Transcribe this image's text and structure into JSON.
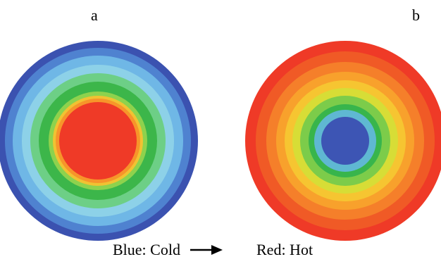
{
  "panels": {
    "a": {
      "label": "a",
      "center_temperature": "hot",
      "edge_temperature": "cold",
      "rings_outer_to_inner": [
        "#3b52b0",
        "#4f82d0",
        "#6fb7e6",
        "#8dd1e8",
        "#6dcf86",
        "#3cb64a",
        "#8ed24d",
        "#f1c232",
        "#f7952a",
        "#ef3a27"
      ]
    },
    "b": {
      "label": "b",
      "center_temperature": "cold",
      "edge_temperature": "hot",
      "rings_outer_to_inner": [
        "#ef3a27",
        "#f05a26",
        "#f57f2a",
        "#f8a12c",
        "#f6c531",
        "#d7dd36",
        "#7ccc4a",
        "#38b54c",
        "#5fb8d2",
        "#3d55b4"
      ]
    }
  },
  "legend": {
    "cold_text": "Blue: Cold",
    "hot_text": "Red: Hot",
    "arrow_icon": "right-arrow-icon"
  },
  "colors": {
    "cold": "#3b52b0",
    "hot": "#ef3a27"
  }
}
